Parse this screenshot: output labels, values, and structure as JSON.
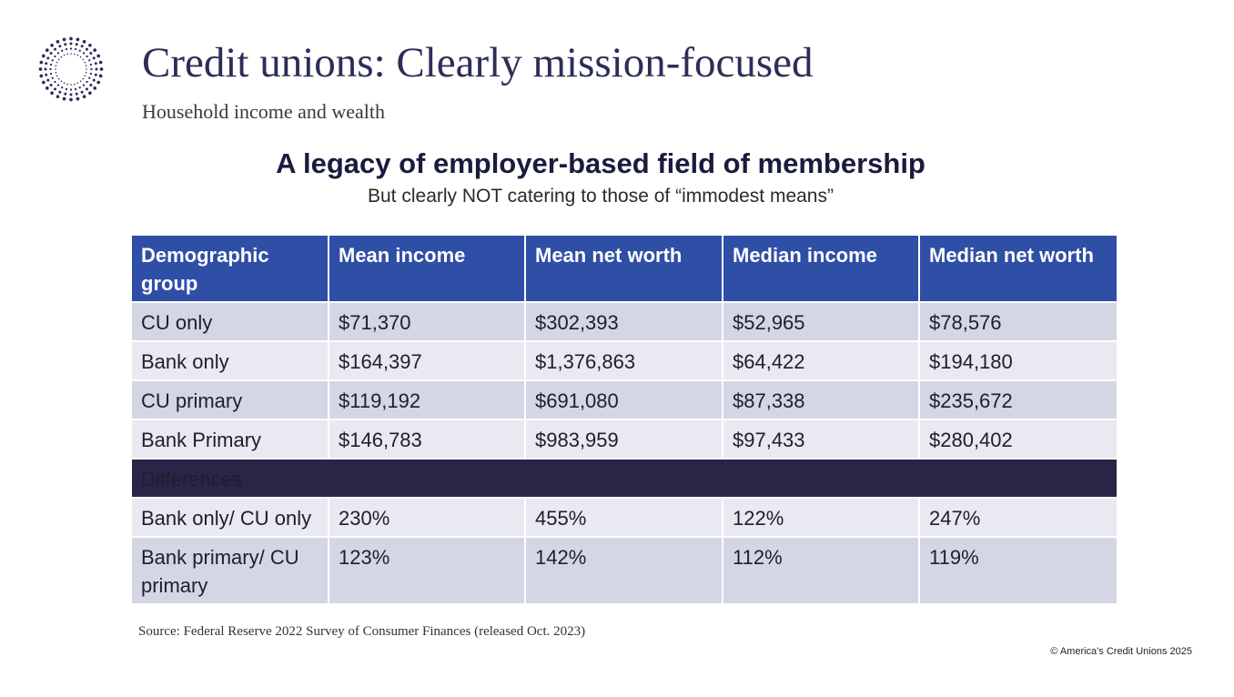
{
  "slide": {
    "title": "Credit unions: Clearly mission-focused",
    "subtitle": "Household income and wealth",
    "heading": "A legacy of employer-based field of membership",
    "subheading": "But clearly NOT catering to those of “immodest means”",
    "source": "Source: Federal Reserve 2022 Survey of Consumer Finances (released Oct. 2023)",
    "copyright": "© America's Credit Unions 2025",
    "logo_icon": "dotted-sunburst-logo-icon",
    "colors": {
      "header_bg": "#2f4ea6",
      "section_bg": "#2a2447",
      "row_odd": "#d4d6e4",
      "row_even": "#e8e9f1",
      "title": "#2c2e58"
    }
  },
  "table": {
    "headers": [
      "Demographic group",
      "Mean income",
      "Mean net worth",
      "Median income",
      "Median net worth"
    ],
    "rows": [
      [
        "CU only",
        "$71,370",
        "$302,393",
        "$52,965",
        "$78,576"
      ],
      [
        "Bank only",
        "$164,397",
        "$1,376,863",
        "$64,422",
        "$194,180"
      ],
      [
        "CU primary",
        "$119,192",
        "$691,080",
        "$87,338",
        "$235,672"
      ],
      [
        "Bank Primary",
        "$146,783",
        "$983,959",
        "$97,433",
        "$280,402"
      ]
    ],
    "section_label": "Differences",
    "diff_rows": [
      [
        "Bank only/ CU only",
        "230%",
        "455%",
        "122%",
        "247%"
      ],
      [
        "Bank primary/ CU primary",
        "123%",
        "142%",
        "112%",
        "119%"
      ]
    ]
  }
}
